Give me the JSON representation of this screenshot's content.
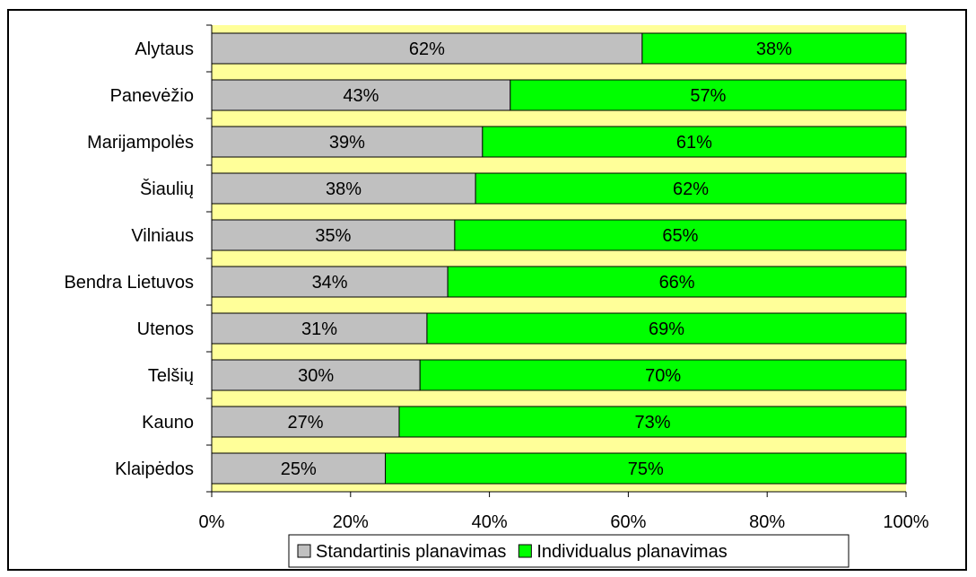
{
  "chart_data": {
    "type": "bar",
    "orientation": "horizontal",
    "stacked": "percent",
    "categories": [
      "Alytaus",
      "Panevėžio",
      "Marijampolės",
      "Šiaulių",
      "Vilniaus",
      "Bendra Lietuvos",
      "Utenos",
      "Telšių",
      "Kauno",
      "Klaipėdos"
    ],
    "series": [
      {
        "name": "Standartinis planavimas",
        "values": [
          62,
          43,
          39,
          38,
          35,
          34,
          31,
          30,
          27,
          25
        ],
        "labels": [
          "62%",
          "43%",
          "39%",
          "38%",
          "35%",
          "34%",
          "31%",
          "30%",
          "27%",
          "25%"
        ],
        "color": "#c0c0c0"
      },
      {
        "name": "Individualus planavimas",
        "values": [
          38,
          57,
          61,
          62,
          65,
          66,
          69,
          70,
          73,
          75
        ],
        "labels": [
          "38%",
          "57%",
          "61%",
          "62%",
          "65%",
          "66%",
          "69%",
          "70%",
          "73%",
          "75%"
        ],
        "color": "#00ff00"
      }
    ],
    "xlim": [
      0,
      100
    ],
    "xticks": [
      "0%",
      "20%",
      "40%",
      "60%",
      "80%",
      "100%"
    ],
    "title": "",
    "xlabel": "",
    "ylabel": "",
    "plot_background": "#ffff99",
    "legend_position": "bottom",
    "grid": false
  }
}
